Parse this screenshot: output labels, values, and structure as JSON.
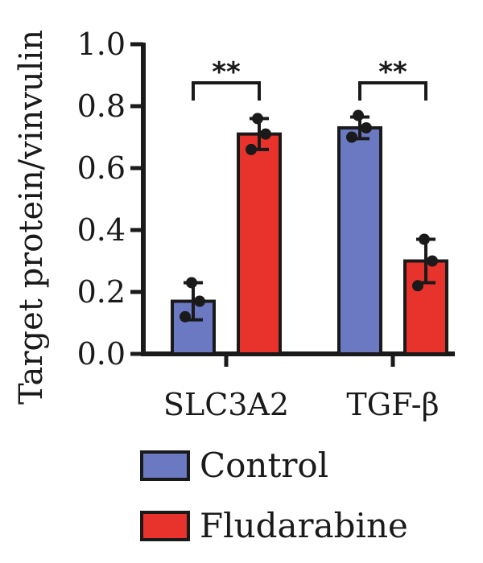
{
  "chart_data": {
    "type": "bar",
    "ylabel": "Target protein/vinvulin",
    "ylim": [
      0,
      1.0
    ],
    "yticks": [
      "0.0",
      "0.2",
      "0.4",
      "0.6",
      "0.8",
      "1.0"
    ],
    "categories": [
      "SLC3A2",
      "TGF-β"
    ],
    "series": [
      {
        "name": "Control",
        "color": "#6a79c2",
        "values": [
          0.17,
          0.73
        ],
        "error": [
          0.06,
          0.035
        ],
        "points": [
          [
            0.12,
            0.17,
            0.23
          ],
          [
            0.7,
            0.73,
            0.77
          ]
        ]
      },
      {
        "name": "Fludarabine",
        "color": "#e8322c",
        "values": [
          0.71,
          0.3
        ],
        "error": [
          0.05,
          0.07
        ],
        "points": [
          [
            0.66,
            0.71,
            0.76
          ],
          [
            0.22,
            0.3,
            0.37
          ]
        ]
      }
    ],
    "significance": [
      "**",
      "**"
    ],
    "legend_position": "bottom"
  }
}
